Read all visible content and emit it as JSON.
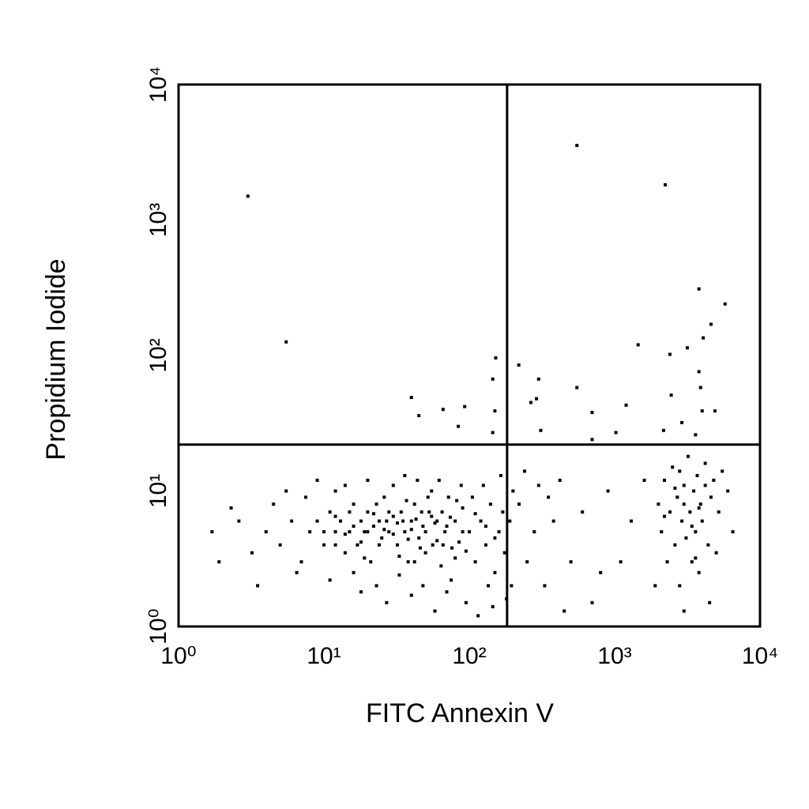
{
  "chart_data": {
    "type": "scatter",
    "xlabel": "FITC Annexin V",
    "ylabel": "Propidium Iodide",
    "xscale": "log",
    "yscale": "log",
    "color": "#000000",
    "xlim": [
      1,
      10000
    ],
    "ylim": [
      1,
      10000
    ],
    "xticks": [
      {
        "value": 1,
        "label": "10⁰"
      },
      {
        "value": 10,
        "label": "10¹"
      },
      {
        "value": 100,
        "label": "10²"
      },
      {
        "value": 1000,
        "label": "10³"
      },
      {
        "value": 10000,
        "label": "10⁴"
      }
    ],
    "yticks": [
      {
        "value": 1,
        "label": "10⁰"
      },
      {
        "value": 10,
        "label": "10¹"
      },
      {
        "value": 100,
        "label": "10²"
      },
      {
        "value": 1000,
        "label": "10³"
      },
      {
        "value": 10000,
        "label": "10⁴"
      }
    ],
    "quadrant": {
      "x": 182,
      "y": 22
    },
    "x": [
      3,
      550,
      2230,
      5.5,
      3800,
      5750,
      152,
      219,
      1450,
      4070,
      4600,
      3160,
      2400,
      40,
      145,
      300,
      550,
      66,
      45,
      93,
      150,
      265,
      290,
      700,
      1200,
      2450,
      3900,
      3800,
      4000,
      4900,
      84,
      310,
      1020,
      2170,
      2900,
      3600,
      145,
      700,
      8,
      9,
      10,
      11,
      12,
      13,
      14,
      15,
      16,
      17,
      18,
      19,
      20,
      21,
      22,
      24,
      25,
      26,
      28,
      30,
      32,
      34,
      36,
      38,
      40,
      42,
      45,
      48,
      50,
      53,
      56,
      60,
      64,
      68,
      72,
      76,
      80,
      85,
      90,
      100,
      110,
      120,
      130,
      140,
      150,
      160,
      175,
      190,
      200,
      5,
      6,
      7,
      4,
      3.5,
      2.3,
      1.7,
      1.9,
      2.6,
      3.2,
      4.5,
      5.5,
      6.5,
      7.5,
      9,
      11,
      12,
      14,
      16,
      18,
      20,
      23,
      27,
      30,
      33,
      36,
      40,
      44,
      48,
      55,
      58,
      62,
      70,
      75,
      88,
      95,
      105,
      115,
      125,
      135,
      145,
      165,
      180,
      195,
      10,
      12,
      14,
      16,
      18,
      20,
      22,
      24,
      26,
      28,
      30,
      32,
      35,
      38,
      40,
      43,
      46,
      50,
      55,
      60,
      65,
      70,
      80,
      90,
      110,
      130,
      150,
      170,
      12,
      15,
      19,
      23,
      27,
      33,
      37,
      42,
      47,
      52,
      58,
      66,
      74,
      82,
      95,
      220,
      250,
      280,
      300,
      330,
      380,
      420,
      500,
      600,
      700,
      800,
      900,
      1100,
      1300,
      1600,
      1900,
      240,
      350,
      450,
      2000,
      2100,
      2200,
      2300,
      2400,
      2500,
      2600,
      2700,
      2800,
      2900,
      3000,
      3100,
      3200,
      3300,
      3400,
      3500,
      3600,
      3700,
      3800,
      3900,
      4000,
      4200,
      4400,
      4600,
      4800,
      5000,
      5200,
      5500,
      6000,
      6500,
      2200,
      2600,
      3000,
      3400,
      3800,
      4200,
      2800,
      3600,
      4500,
      3000
    ],
    "values": [
      1500,
      3550,
      1820,
      126,
      310,
      240,
      96,
      85,
      120,
      135,
      170,
      114,
      102,
      49,
      67,
      67,
      58,
      40,
      36,
      42,
      39,
      45,
      48,
      38,
      43,
      51,
      58,
      76,
      39,
      39,
      30,
      28,
      27,
      28,
      32,
      26,
      27,
      24,
      5,
      6,
      4,
      7,
      5,
      6,
      3.5,
      5,
      8,
      4,
      6,
      5,
      7,
      3,
      5.5,
      6,
      4.5,
      9,
      5,
      6.5,
      4,
      7,
      5,
      3,
      6,
      8,
      4.5,
      5.5,
      3.5,
      7,
      4,
      6,
      2.8,
      5,
      9,
      3.8,
      6,
      4.2,
      7.5,
      5,
      3,
      6,
      4,
      8,
      2.5,
      5,
      3.5,
      6,
      10,
      4,
      6,
      3,
      5,
      2,
      7.5,
      5,
      3,
      6,
      3.5,
      8,
      10,
      2.5,
      9,
      12,
      2.2,
      10,
      11,
      2.5,
      1.8,
      12,
      2,
      1.5,
      11,
      2.4,
      13,
      1.7,
      12,
      2,
      10,
      1.3,
      12,
      1.8,
      2.2,
      11,
      1.5,
      9,
      1.2,
      11,
      2,
      1.4,
      13,
      1.6,
      2,
      5,
      6.5,
      4.8,
      5.5,
      4.2,
      5,
      6.8,
      4,
      5.2,
      7,
      4.8,
      5.8,
      6,
      4.4,
      5.2,
      6.2,
      3.8,
      5,
      6.5,
      4.3,
      7,
      5.5,
      3.2,
      5,
      6.8,
      5.5,
      4.5,
      7,
      4,
      7,
      3.2,
      8,
      6,
      3.3,
      8.5,
      3,
      7,
      9,
      5.8,
      4,
      6.4,
      8.5,
      3.6,
      8,
      3,
      5,
      11,
      2,
      6,
      12,
      3,
      7,
      1.5,
      2.5,
      10,
      3,
      6,
      12,
      2,
      14,
      9,
      1.3,
      8,
      5,
      12,
      3,
      7,
      15,
      4,
      9,
      2,
      6,
      11,
      4.5,
      18,
      7,
      3,
      10,
      5,
      13,
      2.5,
      8,
      6,
      16,
      4,
      9,
      12,
      3.5,
      7,
      14,
      10,
      5,
      6.5,
      10.5,
      8,
      5.5,
      7.5,
      11,
      14,
      3.2,
      1.5,
      1.3
    ]
  }
}
